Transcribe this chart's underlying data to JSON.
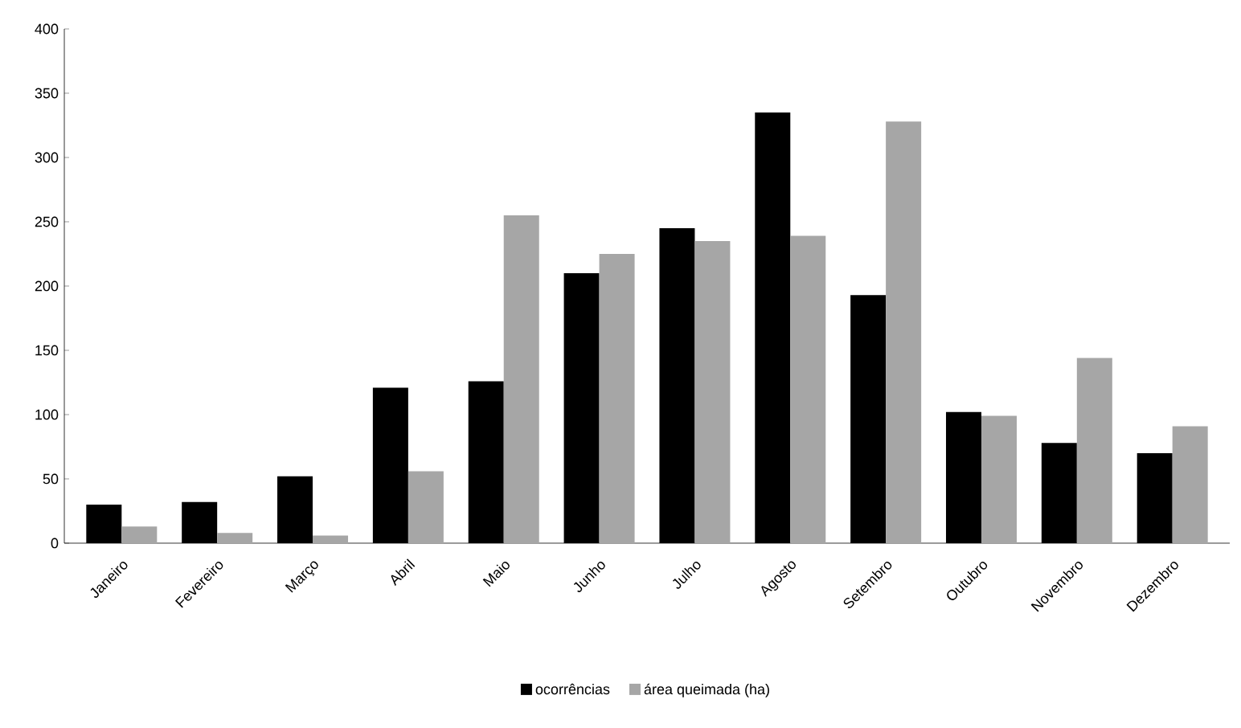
{
  "chart_data": {
    "type": "bar",
    "categories": [
      "Janeiro",
      "Fevereiro",
      "Março",
      "Abril",
      "Maio",
      "Junho",
      "Julho",
      "Agosto",
      "Setembro",
      "Outubro",
      "Novembro",
      "Dezembro"
    ],
    "series": [
      {
        "name": "ocorrências",
        "color": "#000000",
        "values": [
          30,
          32,
          52,
          121,
          126,
          210,
          245,
          335,
          193,
          102,
          78,
          70
        ]
      },
      {
        "name": "área queimada (ha)",
        "color": "#a6a6a6",
        "values": [
          13,
          8,
          6,
          56,
          255,
          225,
          235,
          239,
          328,
          99,
          144,
          91
        ]
      }
    ],
    "ylim": [
      0,
      400
    ],
    "yticks": [
      0,
      50,
      100,
      150,
      200,
      250,
      300,
      350,
      400
    ],
    "legend": "bottom"
  }
}
